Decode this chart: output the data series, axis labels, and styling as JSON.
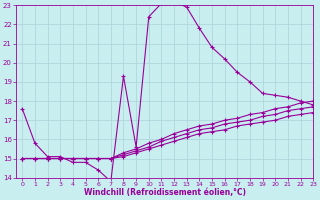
{
  "background_color": "#c8eef0",
  "grid_color": "#aad4d8",
  "line_color": "#990099",
  "xlabel": "Windchill (Refroidissement éolien,°C)",
  "xlim": [
    -0.5,
    23
  ],
  "ylim": [
    14,
    23
  ],
  "xticks": [
    0,
    1,
    2,
    3,
    4,
    5,
    6,
    7,
    8,
    9,
    10,
    11,
    12,
    13,
    14,
    15,
    16,
    17,
    18,
    19,
    20,
    21,
    22,
    23
  ],
  "yticks": [
    14,
    15,
    16,
    17,
    18,
    19,
    20,
    21,
    22,
    23
  ],
  "line1_x": [
    0,
    1,
    2,
    3,
    4,
    5,
    6,
    7,
    8,
    9,
    10,
    11,
    12,
    13,
    14,
    15,
    16,
    17,
    18,
    19,
    20,
    21,
    22,
    23
  ],
  "line1_y": [
    17.6,
    15.8,
    15.1,
    15.1,
    14.8,
    14.8,
    14.4,
    13.8,
    19.3,
    15.6,
    22.4,
    23.1,
    23.2,
    22.9,
    21.8,
    20.8,
    20.2,
    19.5,
    19.0,
    18.4,
    18.3,
    18.2,
    18.0,
    17.8
  ],
  "line2_x": [
    0,
    1,
    2,
    3,
    4,
    5,
    6,
    7,
    8,
    9,
    10,
    11,
    12,
    13,
    14,
    15,
    16,
    17,
    18,
    19,
    20,
    21,
    22,
    23
  ],
  "line2_y": [
    15.0,
    15.0,
    15.0,
    15.0,
    15.0,
    15.0,
    15.0,
    15.0,
    15.3,
    15.5,
    15.8,
    16.0,
    16.3,
    16.5,
    16.7,
    16.8,
    17.0,
    17.1,
    17.3,
    17.4,
    17.6,
    17.7,
    17.9,
    18.0
  ],
  "line3_x": [
    0,
    1,
    2,
    3,
    4,
    5,
    6,
    7,
    8,
    9,
    10,
    11,
    12,
    13,
    14,
    15,
    16,
    17,
    18,
    19,
    20,
    21,
    22,
    23
  ],
  "line3_y": [
    15.0,
    15.0,
    15.0,
    15.0,
    15.0,
    15.0,
    15.0,
    15.0,
    15.2,
    15.4,
    15.6,
    15.9,
    16.1,
    16.3,
    16.5,
    16.6,
    16.8,
    16.9,
    17.0,
    17.2,
    17.3,
    17.5,
    17.6,
    17.7
  ],
  "line4_x": [
    0,
    1,
    2,
    3,
    4,
    5,
    6,
    7,
    8,
    9,
    10,
    11,
    12,
    13,
    14,
    15,
    16,
    17,
    18,
    19,
    20,
    21,
    22,
    23
  ],
  "line4_y": [
    15.0,
    15.0,
    15.0,
    15.0,
    15.0,
    15.0,
    15.0,
    15.0,
    15.1,
    15.3,
    15.5,
    15.7,
    15.9,
    16.1,
    16.3,
    16.4,
    16.5,
    16.7,
    16.8,
    16.9,
    17.0,
    17.2,
    17.3,
    17.4
  ]
}
